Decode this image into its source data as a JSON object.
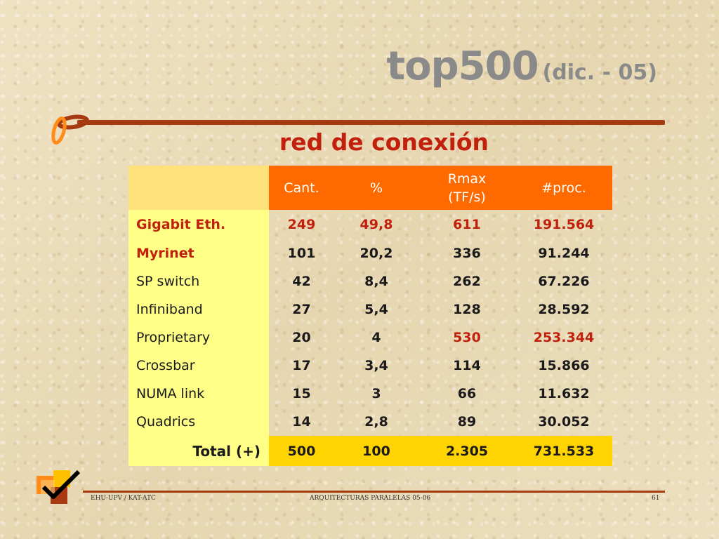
{
  "slide": {
    "title": "top500",
    "title_suffix": "(dic. - 05)",
    "subtitle": "red de conexión"
  },
  "table": {
    "headers": [
      "",
      "Cant.",
      "%",
      "Rmax\n(TF/s)",
      "#proc."
    ],
    "rows": [
      {
        "name": "Gigabit Eth.",
        "values": [
          "249",
          "49,8",
          "611",
          "191.564"
        ]
      },
      {
        "name": "Myrinet",
        "values": [
          "101",
          "20,2",
          "336",
          "91.244"
        ]
      },
      {
        "name": "SP switch",
        "values": [
          "42",
          "8,4",
          "262",
          "67.226"
        ]
      },
      {
        "name": "Infiniband",
        "values": [
          "27",
          "5,4",
          "128",
          "28.592"
        ]
      },
      {
        "name": "Proprietary",
        "values": [
          "20",
          "4",
          "530",
          "253.344"
        ]
      },
      {
        "name": "Crossbar",
        "values": [
          "17",
          "3,4",
          "114",
          "15.866"
        ]
      },
      {
        "name": "NUMA link",
        "values": [
          "15",
          "3",
          "66",
          "11.632"
        ]
      },
      {
        "name": "Quadrics",
        "values": [
          "14",
          "2,8",
          "89",
          "30.052"
        ]
      }
    ],
    "total": {
      "name": "Total (+)",
      "values": [
        "500",
        "100",
        "2.305",
        "731.533"
      ]
    }
  },
  "footer": {
    "left": "EHU-UPV / KAT-ATC",
    "center": "ARQUITECTURAS PARALELAS  05-06",
    "page": "61"
  },
  "colors": {
    "accent_red": "#c0200c",
    "header_orange": "#ff6a00",
    "name_yellow": "#ffff88",
    "total_yellow": "#ffd400",
    "rule_brown": "#a73a10"
  },
  "icons": [
    "swirl-decoration-icon",
    "checkmark-logo-icon"
  ]
}
